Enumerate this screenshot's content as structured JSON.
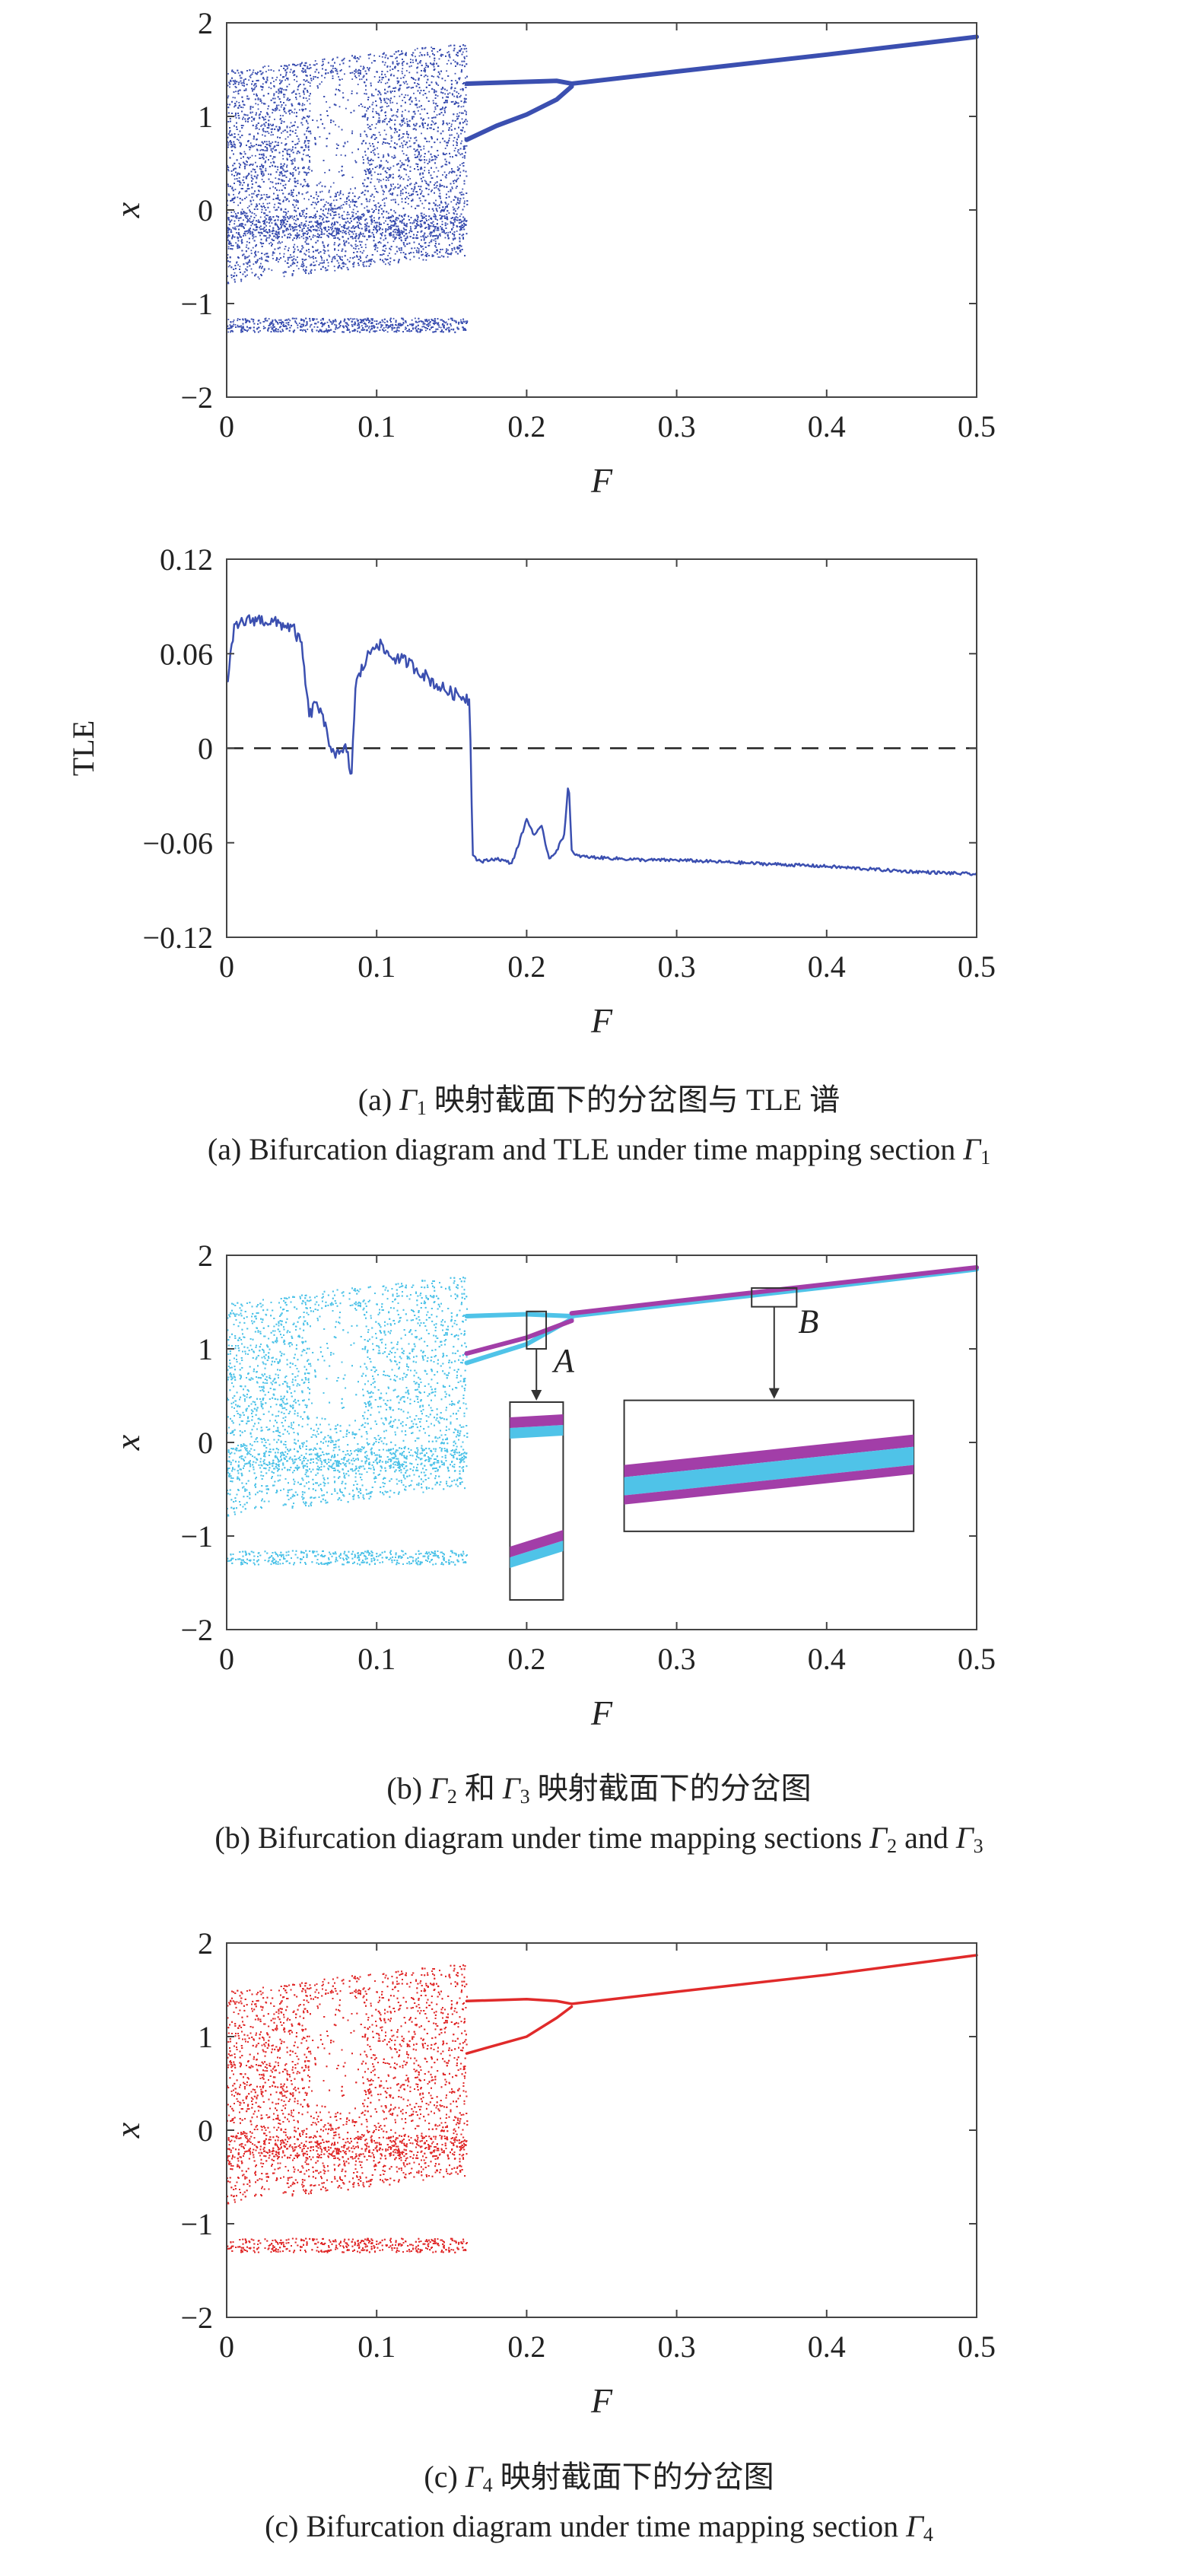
{
  "captions": {
    "a_cn_prefix": "(a) ",
    "a_cn_symbol": "Γ",
    "a_cn_sub": "1",
    "a_cn_rest": " 映射截面下的分岔图与 TLE 谱",
    "a_en_text": "(a) Bifurcation diagram and TLE under time mapping section ",
    "a_en_symbol": "Γ",
    "a_en_sub": "1",
    "b_cn_prefix": "(b) ",
    "b_cn_symbol1": "Γ",
    "b_cn_sub1": "2",
    "b_cn_mid": " 和 ",
    "b_cn_symbol2": "Γ",
    "b_cn_sub2": "3",
    "b_cn_rest": " 映射截面下的分岔图",
    "b_en_text": "(b) Bifurcation diagram under time mapping sections ",
    "b_en_symbol1": "Γ",
    "b_en_sub1": "2",
    "b_en_and": " and ",
    "b_en_symbol2": "Γ",
    "b_en_sub2": "3",
    "c_cn_prefix": "(c) ",
    "c_cn_symbol": "Γ",
    "c_cn_sub": "4",
    "c_cn_rest": " 映射截面下的分岔图",
    "c_en_text": "(c) Bifurcation diagram under time mapping section ",
    "c_en_symbol": "Γ",
    "c_en_sub": "4"
  },
  "chart_data": [
    {
      "id": "a-bifurcation",
      "type": "scatter",
      "xlabel": "F",
      "ylabel": "x",
      "xlim": [
        0,
        0.5
      ],
      "ylim": [
        -2,
        2
      ],
      "xticks": [
        "0",
        "0.1",
        "0.2",
        "0.3",
        "0.4",
        "0.5"
      ],
      "yticks": [
        "−2",
        "−1",
        "0",
        "1",
        "2"
      ],
      "series": [
        {
          "color": "#3b4fb0",
          "chaotic_region": {
            "x": [
              0,
              0.16
            ],
            "y_min": [
              -1.3,
              -0.8
            ],
            "y_max": [
              1.5,
              1.8
            ]
          },
          "branches": [
            {
              "x": [
                0.16,
                0.18,
                0.2,
                0.22,
                0.23
              ],
              "y": [
                1.35,
                1.36,
                1.37,
                1.38,
                1.35
              ]
            },
            {
              "x": [
                0.16,
                0.18,
                0.2,
                0.22,
                0.23
              ],
              "y": [
                0.75,
                0.9,
                1.02,
                1.18,
                1.32
              ]
            },
            {
              "x": [
                0.23,
                0.3,
                0.4,
                0.5
              ],
              "y": [
                1.35,
                1.48,
                1.66,
                1.85
              ]
            }
          ]
        }
      ],
      "grid": false
    },
    {
      "id": "a-tle",
      "type": "line",
      "xlabel": "F",
      "ylabel": "TLE",
      "xlim": [
        0,
        0.5
      ],
      "ylim": [
        -0.12,
        0.12
      ],
      "xticks": [
        "0",
        "0.1",
        "0.2",
        "0.3",
        "0.4",
        "0.5"
      ],
      "yticks": [
        "−0.12",
        "−0.06",
        "0",
        "0.06",
        "0.12"
      ],
      "series": [
        {
          "color": "#3b4fb0",
          "x": [
            0,
            0.005,
            0.01,
            0.02,
            0.03,
            0.04,
            0.045,
            0.05,
            0.055,
            0.06,
            0.065,
            0.07,
            0.075,
            0.08,
            0.083,
            0.086,
            0.09,
            0.095,
            0.1,
            0.105,
            0.11,
            0.12,
            0.13,
            0.14,
            0.15,
            0.16,
            0.162,
            0.164,
            0.166,
            0.17,
            0.18,
            0.19,
            0.195,
            0.2,
            0.205,
            0.21,
            0.215,
            0.22,
            0.225,
            0.228,
            0.23,
            0.232,
            0.24,
            0.26,
            0.28,
            0.3,
            0.35,
            0.4,
            0.45,
            0.5
          ],
          "y": [
            0.04,
            0.075,
            0.08,
            0.082,
            0.08,
            0.078,
            0.075,
            0.065,
            0.02,
            0.03,
            0.015,
            0.0,
            -0.005,
            0.0,
            -0.02,
            0.04,
            0.05,
            0.06,
            0.068,
            0.062,
            0.058,
            0.055,
            0.048,
            0.04,
            0.035,
            0.032,
            0.03,
            -0.065,
            -0.07,
            -0.072,
            -0.07,
            -0.073,
            -0.06,
            -0.045,
            -0.055,
            -0.05,
            -0.07,
            -0.065,
            -0.055,
            -0.02,
            -0.065,
            -0.068,
            -0.069,
            -0.07,
            -0.071,
            -0.071,
            -0.073,
            -0.075,
            -0.078,
            -0.08
          ]
        }
      ],
      "reference_line": {
        "y": 0,
        "style": "dashed",
        "color": "#222222"
      },
      "grid": false
    },
    {
      "id": "b-bifurcation",
      "type": "scatter",
      "xlabel": "F",
      "ylabel": "x",
      "xlim": [
        0,
        0.5
      ],
      "ylim": [
        -2,
        2
      ],
      "xticks": [
        "0",
        "0.1",
        "0.2",
        "0.3",
        "0.4",
        "0.5"
      ],
      "yticks": [
        "−2",
        "−1",
        "0",
        "1",
        "2"
      ],
      "series": [
        {
          "color": "#4fc3e8",
          "chaotic_region": {
            "x": [
              0,
              0.16
            ],
            "y_min": [
              -1.3,
              -0.8
            ],
            "y_max": [
              1.5,
              1.8
            ]
          },
          "branches": [
            {
              "x": [
                0.16,
                0.2,
                0.23
              ],
              "y": [
                1.35,
                1.37,
                1.35
              ]
            },
            {
              "x": [
                0.16,
                0.2,
                0.23
              ],
              "y": [
                0.85,
                1.05,
                1.32
              ]
            },
            {
              "x": [
                0.23,
                0.3,
                0.4,
                0.5
              ],
              "y": [
                1.35,
                1.48,
                1.66,
                1.85
              ]
            }
          ]
        },
        {
          "color": "#a23ea8",
          "branches": [
            {
              "x": [
                0.16,
                0.2,
                0.23
              ],
              "y": [
                0.95,
                1.12,
                1.3
              ]
            },
            {
              "x": [
                0.23,
                0.3,
                0.4,
                0.5
              ],
              "y": [
                1.38,
                1.51,
                1.69,
                1.87
              ]
            }
          ]
        }
      ],
      "annotations": [
        {
          "label": "A",
          "zoom_box": {
            "x": [
              0.2,
              0.213
            ],
            "y": [
              1.0,
              1.4
            ]
          }
        },
        {
          "label": "B",
          "zoom_box": {
            "x": [
              0.35,
              0.38
            ],
            "y": [
              1.45,
              1.65
            ]
          }
        }
      ],
      "grid": false
    },
    {
      "id": "c-bifurcation",
      "type": "scatter",
      "xlabel": "F",
      "ylabel": "x",
      "xlim": [
        0,
        0.5
      ],
      "ylim": [
        -2,
        2
      ],
      "xticks": [
        "0",
        "0.1",
        "0.2",
        "0.3",
        "0.4",
        "0.5"
      ],
      "yticks": [
        "−2",
        "−1",
        "0",
        "1",
        "2"
      ],
      "series": [
        {
          "color": "#e02a2a",
          "chaotic_region": {
            "x": [
              0,
              0.16
            ],
            "y_min": [
              -1.3,
              -0.8
            ],
            "y_max": [
              1.5,
              1.8
            ]
          },
          "branches": [
            {
              "x": [
                0.16,
                0.2,
                0.22,
                0.23
              ],
              "y": [
                1.38,
                1.4,
                1.38,
                1.35
              ]
            },
            {
              "x": [
                0.16,
                0.2,
                0.22,
                0.23
              ],
              "y": [
                0.82,
                1.0,
                1.2,
                1.32
              ]
            },
            {
              "x": [
                0.23,
                0.3,
                0.4,
                0.5
              ],
              "y": [
                1.35,
                1.48,
                1.66,
                1.87
              ]
            }
          ]
        }
      ],
      "grid": false
    }
  ]
}
